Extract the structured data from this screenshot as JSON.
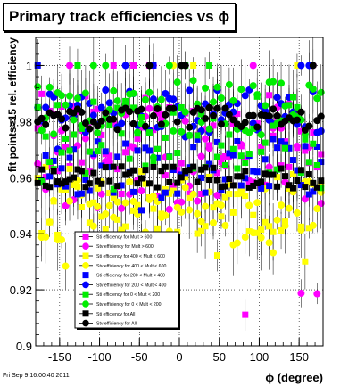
{
  "chart_data": {
    "type": "scatter",
    "title": "Primary track efficiencies vs ϕ",
    "xlabel": "ϕ (degree)",
    "ylabel": "fit points>15 rel. efficiency",
    "xlim": [
      -180,
      180
    ],
    "ylim": [
      0.9,
      1.01
    ],
    "x_ticks": [
      -150,
      -100,
      -50,
      0,
      50,
      100,
      150
    ],
    "y_ticks": [
      0.9,
      0.92,
      0.94,
      0.96,
      0.98,
      1
    ],
    "x_tick_labels": [
      "-150",
      "-100",
      "-50",
      "0",
      "50",
      "100",
      "150"
    ],
    "y_tick_labels": [
      "0.9",
      "0.92",
      "0.94",
      "0.96",
      "0.98",
      "1"
    ],
    "grid": true,
    "legend_position": "bottom-center",
    "series": [
      {
        "name": "Sti efficiency  for Mult > 600",
        "color": "#ff00ff",
        "marker": "square",
        "center": 0.972,
        "spread": 0.018,
        "outlier_low": 0.905
      },
      {
        "name": "Stv efficiency  for Mult > 600",
        "color": "#ff00ff",
        "marker": "circle",
        "center": 0.968,
        "spread": 0.02,
        "outlier_low": 0.915
      },
      {
        "name": "Sti efficiency  for 400 < Mult < 600",
        "color": "#ffff00",
        "marker": "square",
        "center": 0.952,
        "spread": 0.012,
        "outlier_low": 0.93
      },
      {
        "name": "Stv efficiency  for 400 < Mult < 600",
        "color": "#ffff00",
        "marker": "circle",
        "center": 0.948,
        "spread": 0.012,
        "outlier_low": 0.928
      },
      {
        "name": "Sti efficiency  for 200 < Mult < 400",
        "color": "#0000ff",
        "marker": "square",
        "center": 0.964,
        "spread": 0.01,
        "outlier_low": 0.948
      },
      {
        "name": "Stv efficiency  for 200 < Mult < 400",
        "color": "#0000ff",
        "marker": "circle",
        "center": 0.984,
        "spread": 0.008,
        "outlier_low": 0.97
      },
      {
        "name": "Sti efficiency  for 0 < Mult < 200",
        "color": "#00ee00",
        "marker": "square",
        "center": 0.975,
        "spread": 0.014,
        "outlier_low": 0.955
      },
      {
        "name": "Stv efficiency  for 0 < Mult < 200",
        "color": "#00ee00",
        "marker": "circle",
        "center": 0.985,
        "spread": 0.01,
        "outlier_low": 0.965
      },
      {
        "name": "Sti efficiency  for All",
        "color": "#000000",
        "marker": "square",
        "center": 0.96,
        "spread": 0.004,
        "outlier_low": 0.955
      },
      {
        "name": "Stv efficiency  for All",
        "color": "#000000",
        "marker": "circle",
        "center": 0.981,
        "spread": 0.004,
        "outlier_low": 0.976
      }
    ]
  },
  "timestamp": "Fri Sep  9 16:00:40 2011"
}
